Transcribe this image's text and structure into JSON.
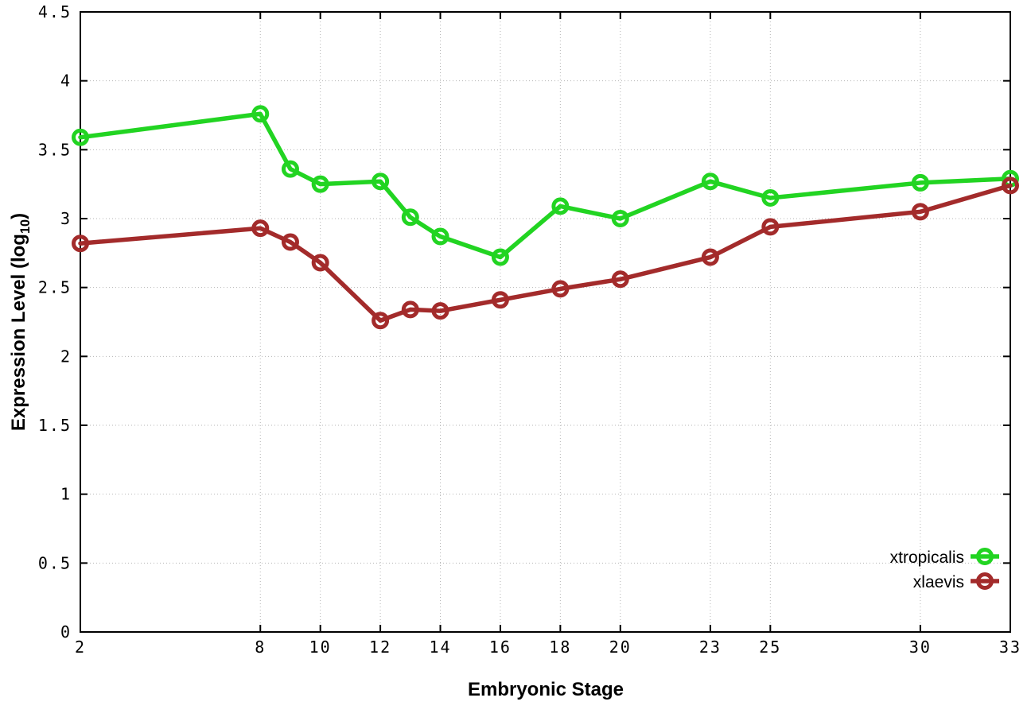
{
  "chart_data": {
    "type": "line",
    "title": "",
    "xlabel": "Embryonic Stage",
    "ylabel": "Expression Level (log10)",
    "ylabel_parts": {
      "pre": "Expression Level (log",
      "sub": "10",
      "post": ")"
    },
    "xlim": [
      2,
      33
    ],
    "ylim": [
      0,
      4.5
    ],
    "xticks": [
      2,
      8,
      10,
      12,
      14,
      16,
      18,
      20,
      23,
      25,
      30,
      33
    ],
    "yticks": [
      0,
      0.5,
      1,
      1.5,
      2,
      2.5,
      3,
      3.5,
      4,
      4.5
    ],
    "grid": true,
    "legend_position": "inside-bottom-right",
    "x": [
      2,
      8,
      9,
      10,
      12,
      13,
      14,
      16,
      18,
      20,
      23,
      25,
      30,
      33
    ],
    "series": [
      {
        "name": "xtropicalis",
        "color": "#22d422",
        "marker": "open-circle",
        "values": [
          3.59,
          3.76,
          3.36,
          3.25,
          3.27,
          3.01,
          2.87,
          2.72,
          3.09,
          3.0,
          3.27,
          3.15,
          3.26,
          3.29
        ]
      },
      {
        "name": "xlaevis",
        "color": "#a32b2b",
        "marker": "open-circle",
        "values": [
          2.82,
          2.93,
          2.83,
          2.68,
          2.26,
          2.34,
          2.33,
          2.41,
          2.49,
          2.56,
          2.72,
          2.94,
          3.05,
          3.24
        ]
      }
    ],
    "style": {
      "border_color": "#000000",
      "grid_color": "#b5b5b5",
      "line_width": 5.5,
      "marker_radius": 8.5,
      "marker_stroke": 5
    }
  }
}
